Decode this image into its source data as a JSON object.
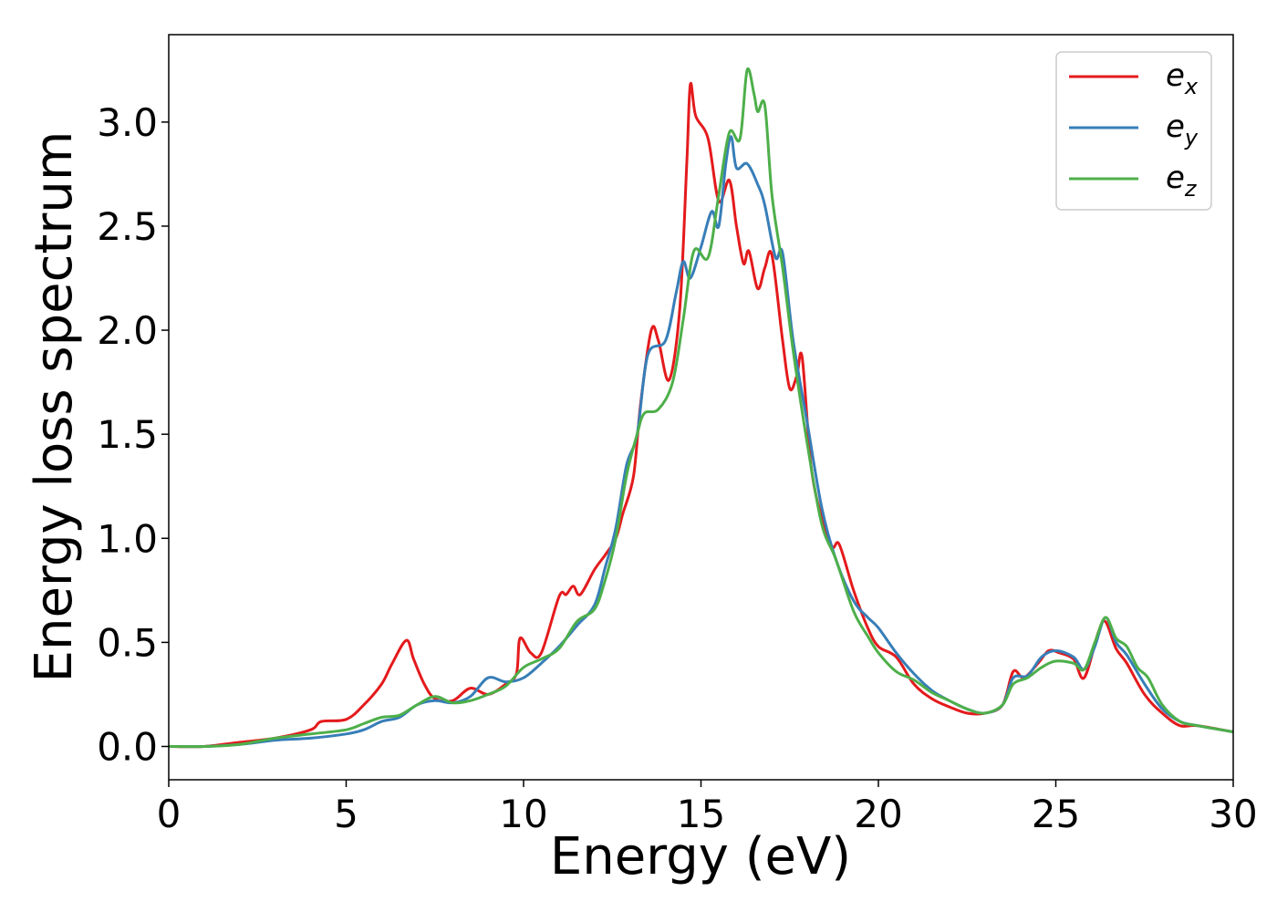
{
  "chart_data": {
    "type": "line",
    "title": "",
    "xlabel": "Energy (eV)",
    "ylabel": "Energy loss spectrum",
    "xlim": [
      0,
      30
    ],
    "ylim": [
      -0.16,
      3.42
    ],
    "xticks": [
      0,
      5,
      10,
      15,
      20,
      25,
      30
    ],
    "xtick_labels": [
      "0",
      "5",
      "10",
      "15",
      "20",
      "25",
      "30"
    ],
    "yticks": [
      0.0,
      0.5,
      1.0,
      1.5,
      2.0,
      2.5,
      3.0
    ],
    "ytick_labels": [
      "0.0",
      "0.5",
      "1.0",
      "1.5",
      "2.0",
      "2.5",
      "3.0"
    ],
    "grid": false,
    "legend_position": "top-right",
    "series": [
      {
        "name": "e_x",
        "legend_base": "e",
        "legend_sub": "x",
        "color": "#e41a1c",
        "points": [
          [
            0,
            0.0
          ],
          [
            1,
            0.0
          ],
          [
            2,
            0.02
          ],
          [
            3,
            0.04
          ],
          [
            4,
            0.08
          ],
          [
            4.3,
            0.12
          ],
          [
            5,
            0.13
          ],
          [
            5.5,
            0.2
          ],
          [
            6,
            0.3
          ],
          [
            6.3,
            0.4
          ],
          [
            6.7,
            0.51
          ],
          [
            6.9,
            0.42
          ],
          [
            7.2,
            0.3
          ],
          [
            7.5,
            0.23
          ],
          [
            8,
            0.22
          ],
          [
            8.5,
            0.28
          ],
          [
            9,
            0.25
          ],
          [
            9.5,
            0.3
          ],
          [
            9.8,
            0.35
          ],
          [
            9.9,
            0.52
          ],
          [
            10.2,
            0.45
          ],
          [
            10.5,
            0.45
          ],
          [
            11,
            0.72
          ],
          [
            11.2,
            0.73
          ],
          [
            11.4,
            0.77
          ],
          [
            11.6,
            0.73
          ],
          [
            12,
            0.85
          ],
          [
            12.3,
            0.92
          ],
          [
            12.6,
            1.0
          ],
          [
            12.8,
            1.12
          ],
          [
            13.1,
            1.3
          ],
          [
            13.3,
            1.65
          ],
          [
            13.6,
            2.0
          ],
          [
            13.8,
            1.95
          ],
          [
            14.1,
            1.76
          ],
          [
            14.4,
            2.1
          ],
          [
            14.6,
            2.8
          ],
          [
            14.7,
            3.18
          ],
          [
            14.85,
            3.03
          ],
          [
            15.2,
            2.92
          ],
          [
            15.5,
            2.62
          ],
          [
            15.8,
            2.72
          ],
          [
            16,
            2.5
          ],
          [
            16.2,
            2.32
          ],
          [
            16.35,
            2.38
          ],
          [
            16.6,
            2.2
          ],
          [
            16.8,
            2.3
          ],
          [
            17,
            2.36
          ],
          [
            17.3,
            1.95
          ],
          [
            17.5,
            1.72
          ],
          [
            17.7,
            1.78
          ],
          [
            17.85,
            1.87
          ],
          [
            18.1,
            1.35
          ],
          [
            18.4,
            1.1
          ],
          [
            18.7,
            0.96
          ],
          [
            18.9,
            0.97
          ],
          [
            19.3,
            0.75
          ],
          [
            19.7,
            0.57
          ],
          [
            20,
            0.48
          ],
          [
            20.5,
            0.43
          ],
          [
            21,
            0.3
          ],
          [
            21.5,
            0.23
          ],
          [
            22,
            0.19
          ],
          [
            22.5,
            0.16
          ],
          [
            23,
            0.16
          ],
          [
            23.5,
            0.2
          ],
          [
            23.8,
            0.36
          ],
          [
            24.1,
            0.33
          ],
          [
            24.5,
            0.4
          ],
          [
            24.8,
            0.46
          ],
          [
            25.1,
            0.45
          ],
          [
            25.5,
            0.42
          ],
          [
            25.8,
            0.33
          ],
          [
            26.2,
            0.55
          ],
          [
            26.4,
            0.6
          ],
          [
            26.7,
            0.47
          ],
          [
            27,
            0.4
          ],
          [
            27.5,
            0.25
          ],
          [
            28,
            0.16
          ],
          [
            28.5,
            0.1
          ],
          [
            29,
            0.1
          ],
          [
            30,
            0.07
          ]
        ]
      },
      {
        "name": "e_y",
        "legend_base": "e",
        "legend_sub": "y",
        "color": "#377eb8",
        "points": [
          [
            0,
            0.0
          ],
          [
            1,
            0.0
          ],
          [
            2,
            0.01
          ],
          [
            3,
            0.03
          ],
          [
            4,
            0.04
          ],
          [
            5,
            0.06
          ],
          [
            5.5,
            0.08
          ],
          [
            6,
            0.12
          ],
          [
            6.5,
            0.14
          ],
          [
            7,
            0.2
          ],
          [
            7.5,
            0.22
          ],
          [
            8,
            0.21
          ],
          [
            8.5,
            0.24
          ],
          [
            9,
            0.33
          ],
          [
            9.5,
            0.31
          ],
          [
            10,
            0.33
          ],
          [
            10.5,
            0.4
          ],
          [
            11,
            0.48
          ],
          [
            11.5,
            0.58
          ],
          [
            12,
            0.68
          ],
          [
            12.3,
            0.86
          ],
          [
            12.6,
            1.05
          ],
          [
            12.9,
            1.35
          ],
          [
            13.2,
            1.5
          ],
          [
            13.5,
            1.88
          ],
          [
            14,
            1.95
          ],
          [
            14.3,
            2.18
          ],
          [
            14.5,
            2.33
          ],
          [
            14.7,
            2.25
          ],
          [
            15,
            2.4
          ],
          [
            15.3,
            2.57
          ],
          [
            15.5,
            2.5
          ],
          [
            15.7,
            2.8
          ],
          [
            15.85,
            2.93
          ],
          [
            16,
            2.78
          ],
          [
            16.3,
            2.8
          ],
          [
            16.6,
            2.7
          ],
          [
            16.8,
            2.6
          ],
          [
            17.1,
            2.35
          ],
          [
            17.3,
            2.37
          ],
          [
            17.6,
            1.95
          ],
          [
            18,
            1.55
          ],
          [
            18.4,
            1.15
          ],
          [
            18.8,
            0.9
          ],
          [
            19.3,
            0.7
          ],
          [
            19.7,
            0.62
          ],
          [
            20,
            0.57
          ],
          [
            20.5,
            0.45
          ],
          [
            21,
            0.35
          ],
          [
            21.5,
            0.27
          ],
          [
            22,
            0.22
          ],
          [
            22.5,
            0.18
          ],
          [
            23,
            0.16
          ],
          [
            23.5,
            0.2
          ],
          [
            23.8,
            0.33
          ],
          [
            24.2,
            0.34
          ],
          [
            24.6,
            0.43
          ],
          [
            25,
            0.46
          ],
          [
            25.5,
            0.43
          ],
          [
            25.8,
            0.37
          ],
          [
            26.1,
            0.48
          ],
          [
            26.4,
            0.62
          ],
          [
            26.7,
            0.5
          ],
          [
            27,
            0.44
          ],
          [
            27.5,
            0.3
          ],
          [
            28,
            0.18
          ],
          [
            28.5,
            0.12
          ],
          [
            29,
            0.1
          ],
          [
            30,
            0.07
          ]
        ]
      },
      {
        "name": "e_z",
        "legend_base": "e",
        "legend_sub": "z",
        "color": "#4daf4a",
        "points": [
          [
            0,
            0.0
          ],
          [
            1,
            0.0
          ],
          [
            2,
            0.01
          ],
          [
            3,
            0.04
          ],
          [
            4,
            0.06
          ],
          [
            5,
            0.08
          ],
          [
            5.5,
            0.11
          ],
          [
            6,
            0.14
          ],
          [
            6.5,
            0.15
          ],
          [
            7,
            0.2
          ],
          [
            7.5,
            0.24
          ],
          [
            8,
            0.21
          ],
          [
            8.5,
            0.22
          ],
          [
            9,
            0.25
          ],
          [
            9.5,
            0.29
          ],
          [
            10,
            0.38
          ],
          [
            10.5,
            0.42
          ],
          [
            11,
            0.47
          ],
          [
            11.5,
            0.6
          ],
          [
            12,
            0.66
          ],
          [
            12.3,
            0.8
          ],
          [
            12.6,
            1.0
          ],
          [
            12.9,
            1.3
          ],
          [
            13.2,
            1.5
          ],
          [
            13.4,
            1.6
          ],
          [
            13.8,
            1.62
          ],
          [
            14.2,
            1.75
          ],
          [
            14.5,
            2.05
          ],
          [
            14.8,
            2.38
          ],
          [
            15.2,
            2.35
          ],
          [
            15.5,
            2.65
          ],
          [
            15.8,
            2.95
          ],
          [
            16.1,
            2.92
          ],
          [
            16.3,
            3.25
          ],
          [
            16.5,
            3.13
          ],
          [
            16.6,
            3.05
          ],
          [
            16.8,
            3.08
          ],
          [
            17,
            2.65
          ],
          [
            17.3,
            2.3
          ],
          [
            17.6,
            1.9
          ],
          [
            18,
            1.45
          ],
          [
            18.4,
            1.07
          ],
          [
            18.8,
            0.9
          ],
          [
            19.3,
            0.65
          ],
          [
            19.7,
            0.53
          ],
          [
            20,
            0.45
          ],
          [
            20.5,
            0.36
          ],
          [
            21,
            0.32
          ],
          [
            21.5,
            0.26
          ],
          [
            22,
            0.22
          ],
          [
            22.5,
            0.18
          ],
          [
            23,
            0.16
          ],
          [
            23.5,
            0.2
          ],
          [
            23.8,
            0.3
          ],
          [
            24.2,
            0.33
          ],
          [
            24.6,
            0.38
          ],
          [
            25,
            0.41
          ],
          [
            25.5,
            0.4
          ],
          [
            25.8,
            0.37
          ],
          [
            26.1,
            0.5
          ],
          [
            26.4,
            0.62
          ],
          [
            26.7,
            0.52
          ],
          [
            27,
            0.48
          ],
          [
            27.3,
            0.38
          ],
          [
            27.6,
            0.33
          ],
          [
            28,
            0.2
          ],
          [
            28.5,
            0.12
          ],
          [
            29,
            0.1
          ],
          [
            30,
            0.07
          ]
        ]
      }
    ]
  }
}
